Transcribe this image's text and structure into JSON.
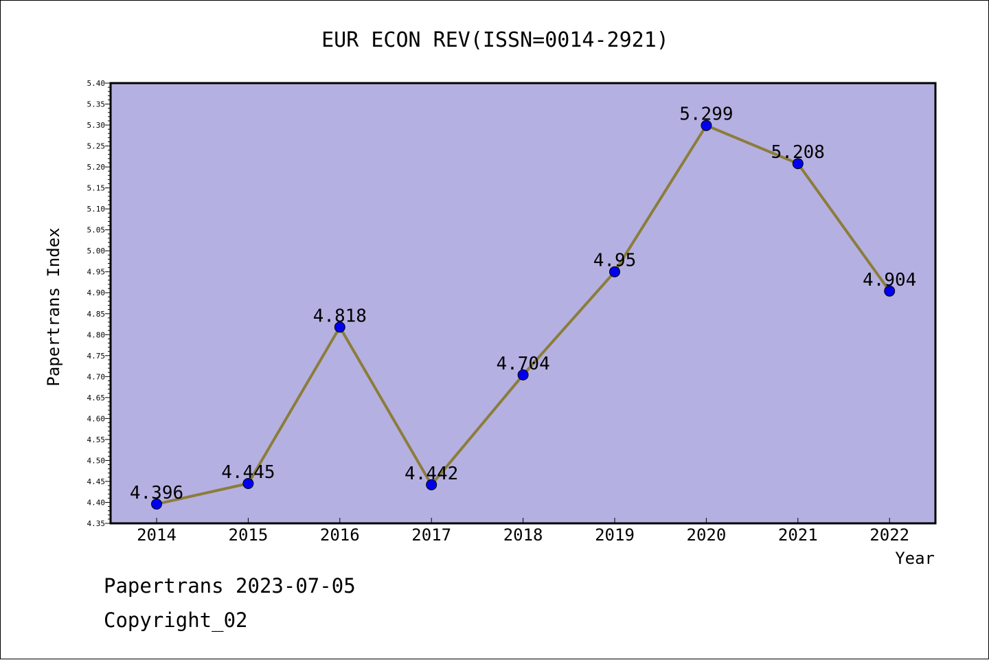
{
  "footer": {
    "line1": "Papertrans 2023-07-05",
    "line2": "Copyright_02"
  },
  "colors": {
    "plot_background": "#b5b0e2",
    "line": "#8b7d3a",
    "marker": "#0000ee",
    "axis": "#000000"
  },
  "chart_data": {
    "type": "line",
    "title": "EUR ECON REV(ISSN=0014-2921)",
    "xlabel": "Year",
    "ylabel": "Papertrans Index",
    "x": [
      "2014",
      "2015",
      "2016",
      "2017",
      "2018",
      "2019",
      "2020",
      "2021",
      "2022"
    ],
    "series": [
      {
        "values": [
          4.396,
          4.445,
          4.818,
          4.442,
          4.704,
          4.95,
          5.299,
          5.208,
          4.904
        ],
        "labels": [
          "4.396",
          "4.445",
          "4.818",
          "4.442",
          "4.704",
          "4.95",
          "5.299",
          "5.208",
          "4.904"
        ]
      }
    ],
    "ylim": [
      4.35,
      5.4
    ],
    "yticks": [
      "4.35",
      "4.40",
      "4.45",
      "4.50",
      "4.55",
      "4.60",
      "4.65",
      "4.70",
      "4.75",
      "4.80",
      "4.85",
      "4.90",
      "4.95",
      "5.00",
      "5.05",
      "5.10",
      "5.15",
      "5.20",
      "5.25",
      "5.30",
      "5.35",
      "5.40"
    ],
    "grid": false,
    "legend": "none"
  }
}
